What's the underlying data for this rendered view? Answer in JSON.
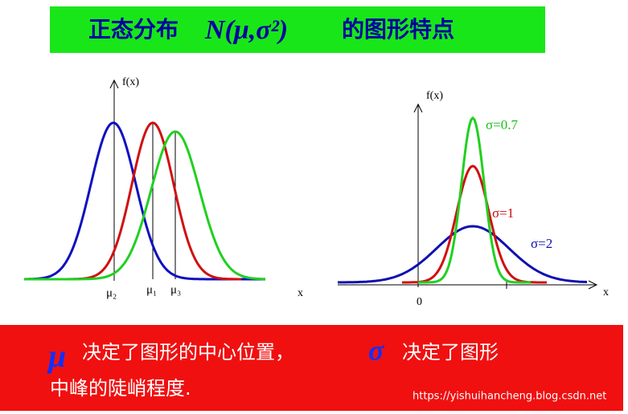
{
  "title": {
    "lead": "正态分布",
    "formula": "N(μ,σ²)",
    "tail": "的图形特点"
  },
  "left_figure": {
    "y_label": "f(x)",
    "x_label": "x",
    "means": [
      "μ₂",
      "μ₁",
      "μ₃"
    ]
  },
  "right_figure": {
    "y_label": "f(x)",
    "x_label": "x",
    "origin": "0",
    "curves": [
      "σ=0.7",
      "σ=1",
      "σ=2"
    ]
  },
  "footer": {
    "mu": "μ",
    "line1a": "决定了图形的中心位置，",
    "sigma": "σ",
    "line1b": "决定了图形",
    "line2": "中峰的陡峭程度.",
    "watermark": "https://yishuihancheng.blog.csdn.net"
  }
}
